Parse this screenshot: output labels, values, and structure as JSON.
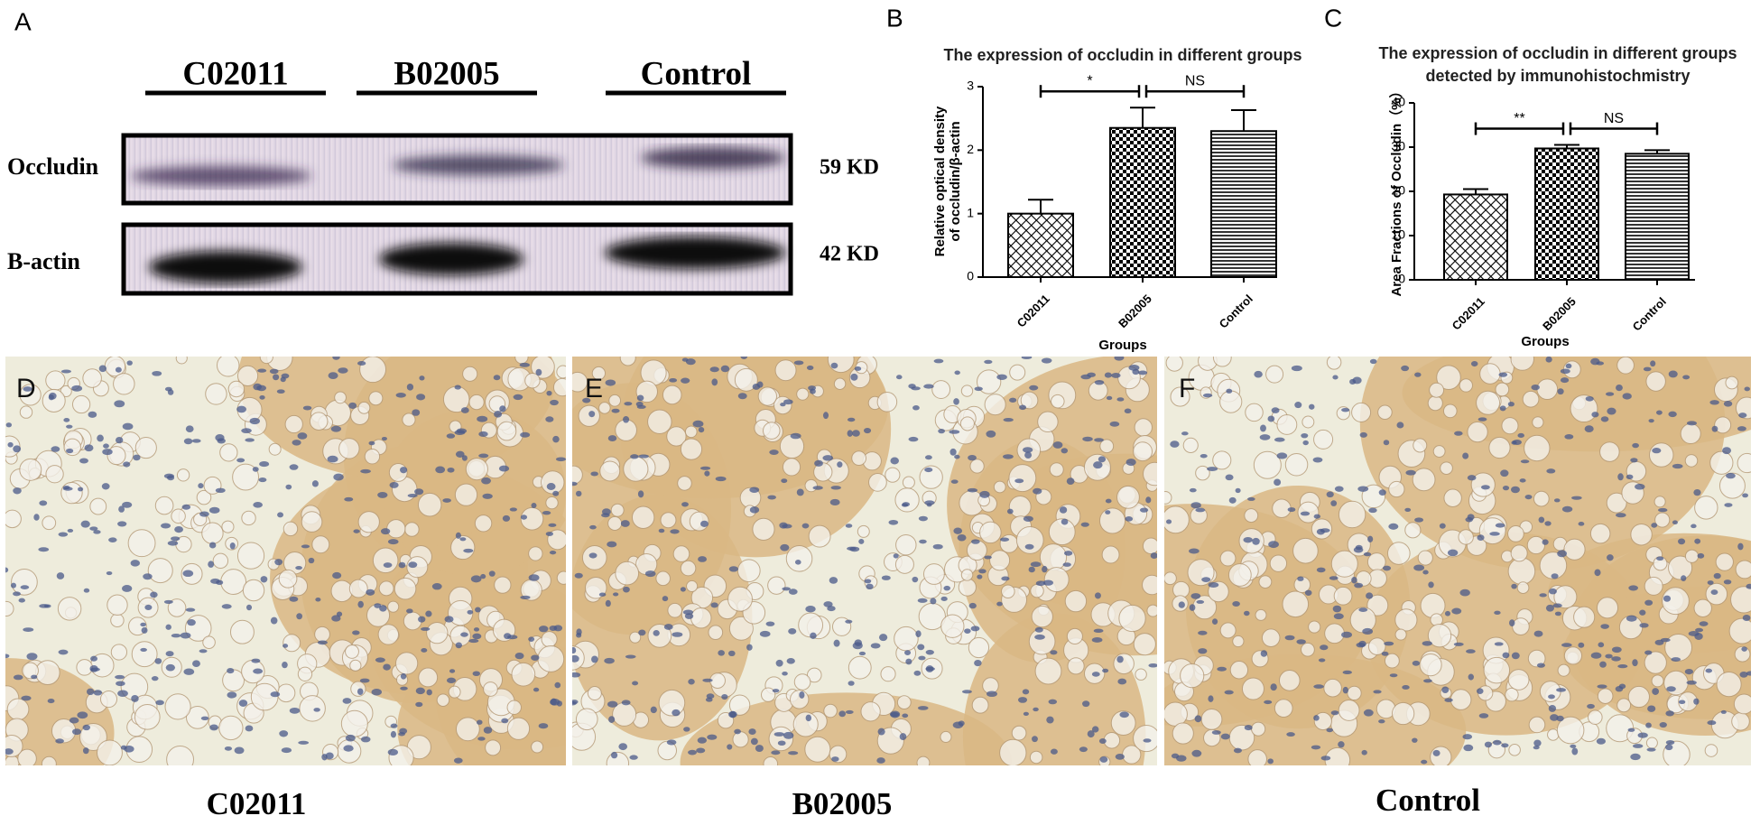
{
  "panel_labels": [
    "A",
    "B",
    "C",
    "D",
    "E",
    "F"
  ],
  "western_blot": {
    "groups": [
      "C02011",
      "B02005",
      "Control"
    ],
    "bands": [
      {
        "name": "Occludin",
        "size": "59 KD"
      },
      {
        "name": "B-actin",
        "size": "42 KD"
      }
    ]
  },
  "chart_data": [
    {
      "type": "bar",
      "title": [
        "The expression of occludin in different groups"
      ],
      "ylabel": [
        "Relative optical density",
        "of occludin/β-actin"
      ],
      "xlabel": "Groups",
      "categories": [
        "C02011",
        "B02005",
        "Control"
      ],
      "values": [
        1.0,
        2.35,
        2.3
      ],
      "errors": [
        0.22,
        0.32,
        0.33
      ],
      "ylim": [
        0,
        3
      ],
      "yticks": [
        0,
        1,
        2,
        3
      ],
      "bar_patterns": [
        "crosshatch",
        "checker",
        "hlines"
      ],
      "annotations": [
        {
          "text": "*",
          "between": [
            0,
            1
          ]
        },
        {
          "text": "NS",
          "between": [
            1,
            2
          ]
        }
      ]
    },
    {
      "type": "bar",
      "title": [
        "The expression of occludin in different groups",
        "detected by immunohistochmistry"
      ],
      "ylabel": [
        "Area Fractions of Occludin（%）"
      ],
      "xlabel": "Groups",
      "categories": [
        "C02011",
        "B02005",
        "Control"
      ],
      "values": [
        19.3,
        29.7,
        28.5
      ],
      "errors": [
        1.2,
        0.8,
        0.8
      ],
      "ylim": [
        0,
        40
      ],
      "yticks": [
        0,
        10,
        20,
        30,
        40
      ],
      "bar_patterns": [
        "crosshatch",
        "checker",
        "hlines"
      ],
      "annotations": [
        {
          "text": "**",
          "between": [
            0,
            1
          ]
        },
        {
          "text": "NS",
          "between": [
            1,
            2
          ]
        }
      ]
    }
  ],
  "histology": {
    "captions": [
      "C02011",
      "B02005",
      "Control"
    ]
  }
}
